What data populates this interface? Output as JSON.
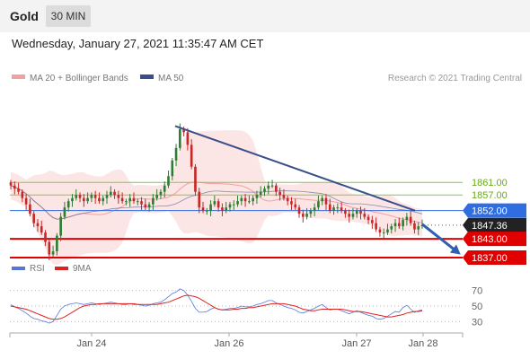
{
  "header": {
    "symbol": "Gold",
    "timeframe": "30 MIN"
  },
  "datetime": "Wednesday, January 27, 2021 11:35:47 AM CET",
  "legend": {
    "bollinger": "MA 20 + Bollinger Bands",
    "ma50": "MA 50",
    "copyright": "Research © 2021 Trading Central",
    "rsi": "RSI",
    "rsi_ma": "9MA"
  },
  "colors": {
    "candle_up": "#2e7d32",
    "candle_down": "#c62828",
    "bollinger": "#f4a0a0",
    "ma50": "#3a4f8a",
    "resistance": "#8bc34a",
    "support": "#e00000",
    "pivot": "#2f6de1",
    "current": "#222222",
    "rsi": "#5577dd",
    "rsi_ma": "#dd2222"
  },
  "chart_data": [
    {
      "type": "candlestick",
      "x_ticks": [
        "Jan 24",
        "Jan 26",
        "Jan 27",
        "Jan 28"
      ],
      "ylim": [
        1835,
        1890
      ],
      "levels": [
        {
          "label": "1861.00",
          "value": 1861.0,
          "kind": "resistance"
        },
        {
          "label": "1857.00",
          "value": 1857.0,
          "kind": "resistance"
        },
        {
          "label": "1852.00",
          "value": 1852.0,
          "kind": "pivot"
        },
        {
          "label": "1847.36",
          "value": 1847.36,
          "kind": "current"
        },
        {
          "label": "1843.00",
          "value": 1843.0,
          "kind": "support"
        },
        {
          "label": "1837.00",
          "value": 1837.0,
          "kind": "support"
        }
      ],
      "trendline": {
        "from": 1879,
        "to": 1852
      },
      "forecast_arrow": {
        "from": 1847.36,
        "to": 1838.5
      },
      "closes": [
        1860,
        1859,
        1858,
        1856,
        1854,
        1851,
        1848,
        1847,
        1845,
        1842,
        1838,
        1839,
        1844,
        1850,
        1853,
        1855,
        1856,
        1857,
        1856,
        1855,
        1856,
        1857,
        1856,
        1855,
        1856,
        1857,
        1858,
        1857,
        1856,
        1855,
        1855,
        1856,
        1855,
        1855,
        1854,
        1853,
        1854,
        1856,
        1857,
        1858,
        1860,
        1863,
        1868,
        1872,
        1878,
        1877,
        1873,
        1866,
        1858,
        1853,
        1852,
        1852,
        1854,
        1855,
        1853,
        1852,
        1853,
        1854,
        1854,
        1855,
        1856,
        1855,
        1855,
        1856,
        1857,
        1858,
        1859,
        1860,
        1860,
        1858,
        1857,
        1856,
        1855,
        1854,
        1853,
        1851,
        1850,
        1851,
        1852,
        1853,
        1855,
        1856,
        1854,
        1852,
        1853,
        1853,
        1852,
        1851,
        1850,
        1851,
        1852,
        1851,
        1850,
        1849,
        1848,
        1846,
        1845,
        1845,
        1846,
        1847,
        1848,
        1847,
        1849,
        1850,
        1848,
        1846,
        1847,
        1847.36
      ]
    },
    {
      "type": "line",
      "title": "RSI",
      "ylim": [
        20,
        80
      ],
      "y_ticks": [
        70,
        50,
        30
      ],
      "series": [
        {
          "name": "RSI",
          "values": [
            52,
            49,
            47,
            44,
            41,
            37,
            34,
            33,
            31,
            30,
            28,
            30,
            38,
            46,
            50,
            52,
            53,
            54,
            53,
            52,
            53,
            54,
            53,
            52,
            53,
            54,
            55,
            54,
            53,
            52,
            52,
            53,
            52,
            52,
            51,
            50,
            51,
            53,
            54,
            55,
            58,
            62,
            66,
            68,
            72,
            70,
            64,
            56,
            47,
            42,
            42,
            43,
            46,
            48,
            46,
            45,
            46,
            47,
            47,
            48,
            50,
            49,
            49,
            50,
            52,
            53,
            55,
            57,
            57,
            54,
            52,
            50,
            48,
            47,
            45,
            42,
            41,
            43,
            45,
            47,
            50,
            52,
            48,
            45,
            46,
            46,
            44,
            42,
            40,
            42,
            44,
            42,
            40,
            38,
            37,
            34,
            33,
            34,
            37,
            40,
            43,
            42,
            48,
            51,
            46,
            42,
            44,
            45
          ]
        },
        {
          "name": "9MA",
          "values": [
            50,
            49,
            48,
            47,
            46,
            44,
            42,
            40,
            38,
            36,
            34,
            33,
            33,
            34,
            36,
            39,
            42,
            45,
            48,
            50,
            51,
            52,
            52,
            53,
            53,
            53,
            53,
            53,
            53,
            53,
            53,
            53,
            53,
            52,
            52,
            52,
            52,
            52,
            52,
            53,
            54,
            55,
            57,
            59,
            61,
            63,
            64,
            63,
            62,
            60,
            57,
            54,
            51,
            48,
            46,
            45,
            45,
            45,
            46,
            46,
            47,
            47,
            48,
            48,
            49,
            50,
            51,
            52,
            53,
            53,
            53,
            53,
            52,
            51,
            50,
            48,
            46,
            45,
            44,
            44,
            45,
            46,
            46,
            46,
            46,
            46,
            46,
            45,
            44,
            43,
            43,
            43,
            42,
            41,
            40,
            39,
            38,
            37,
            36,
            36,
            37,
            38,
            39,
            41,
            42,
            43,
            43,
            44
          ]
        }
      ]
    }
  ]
}
